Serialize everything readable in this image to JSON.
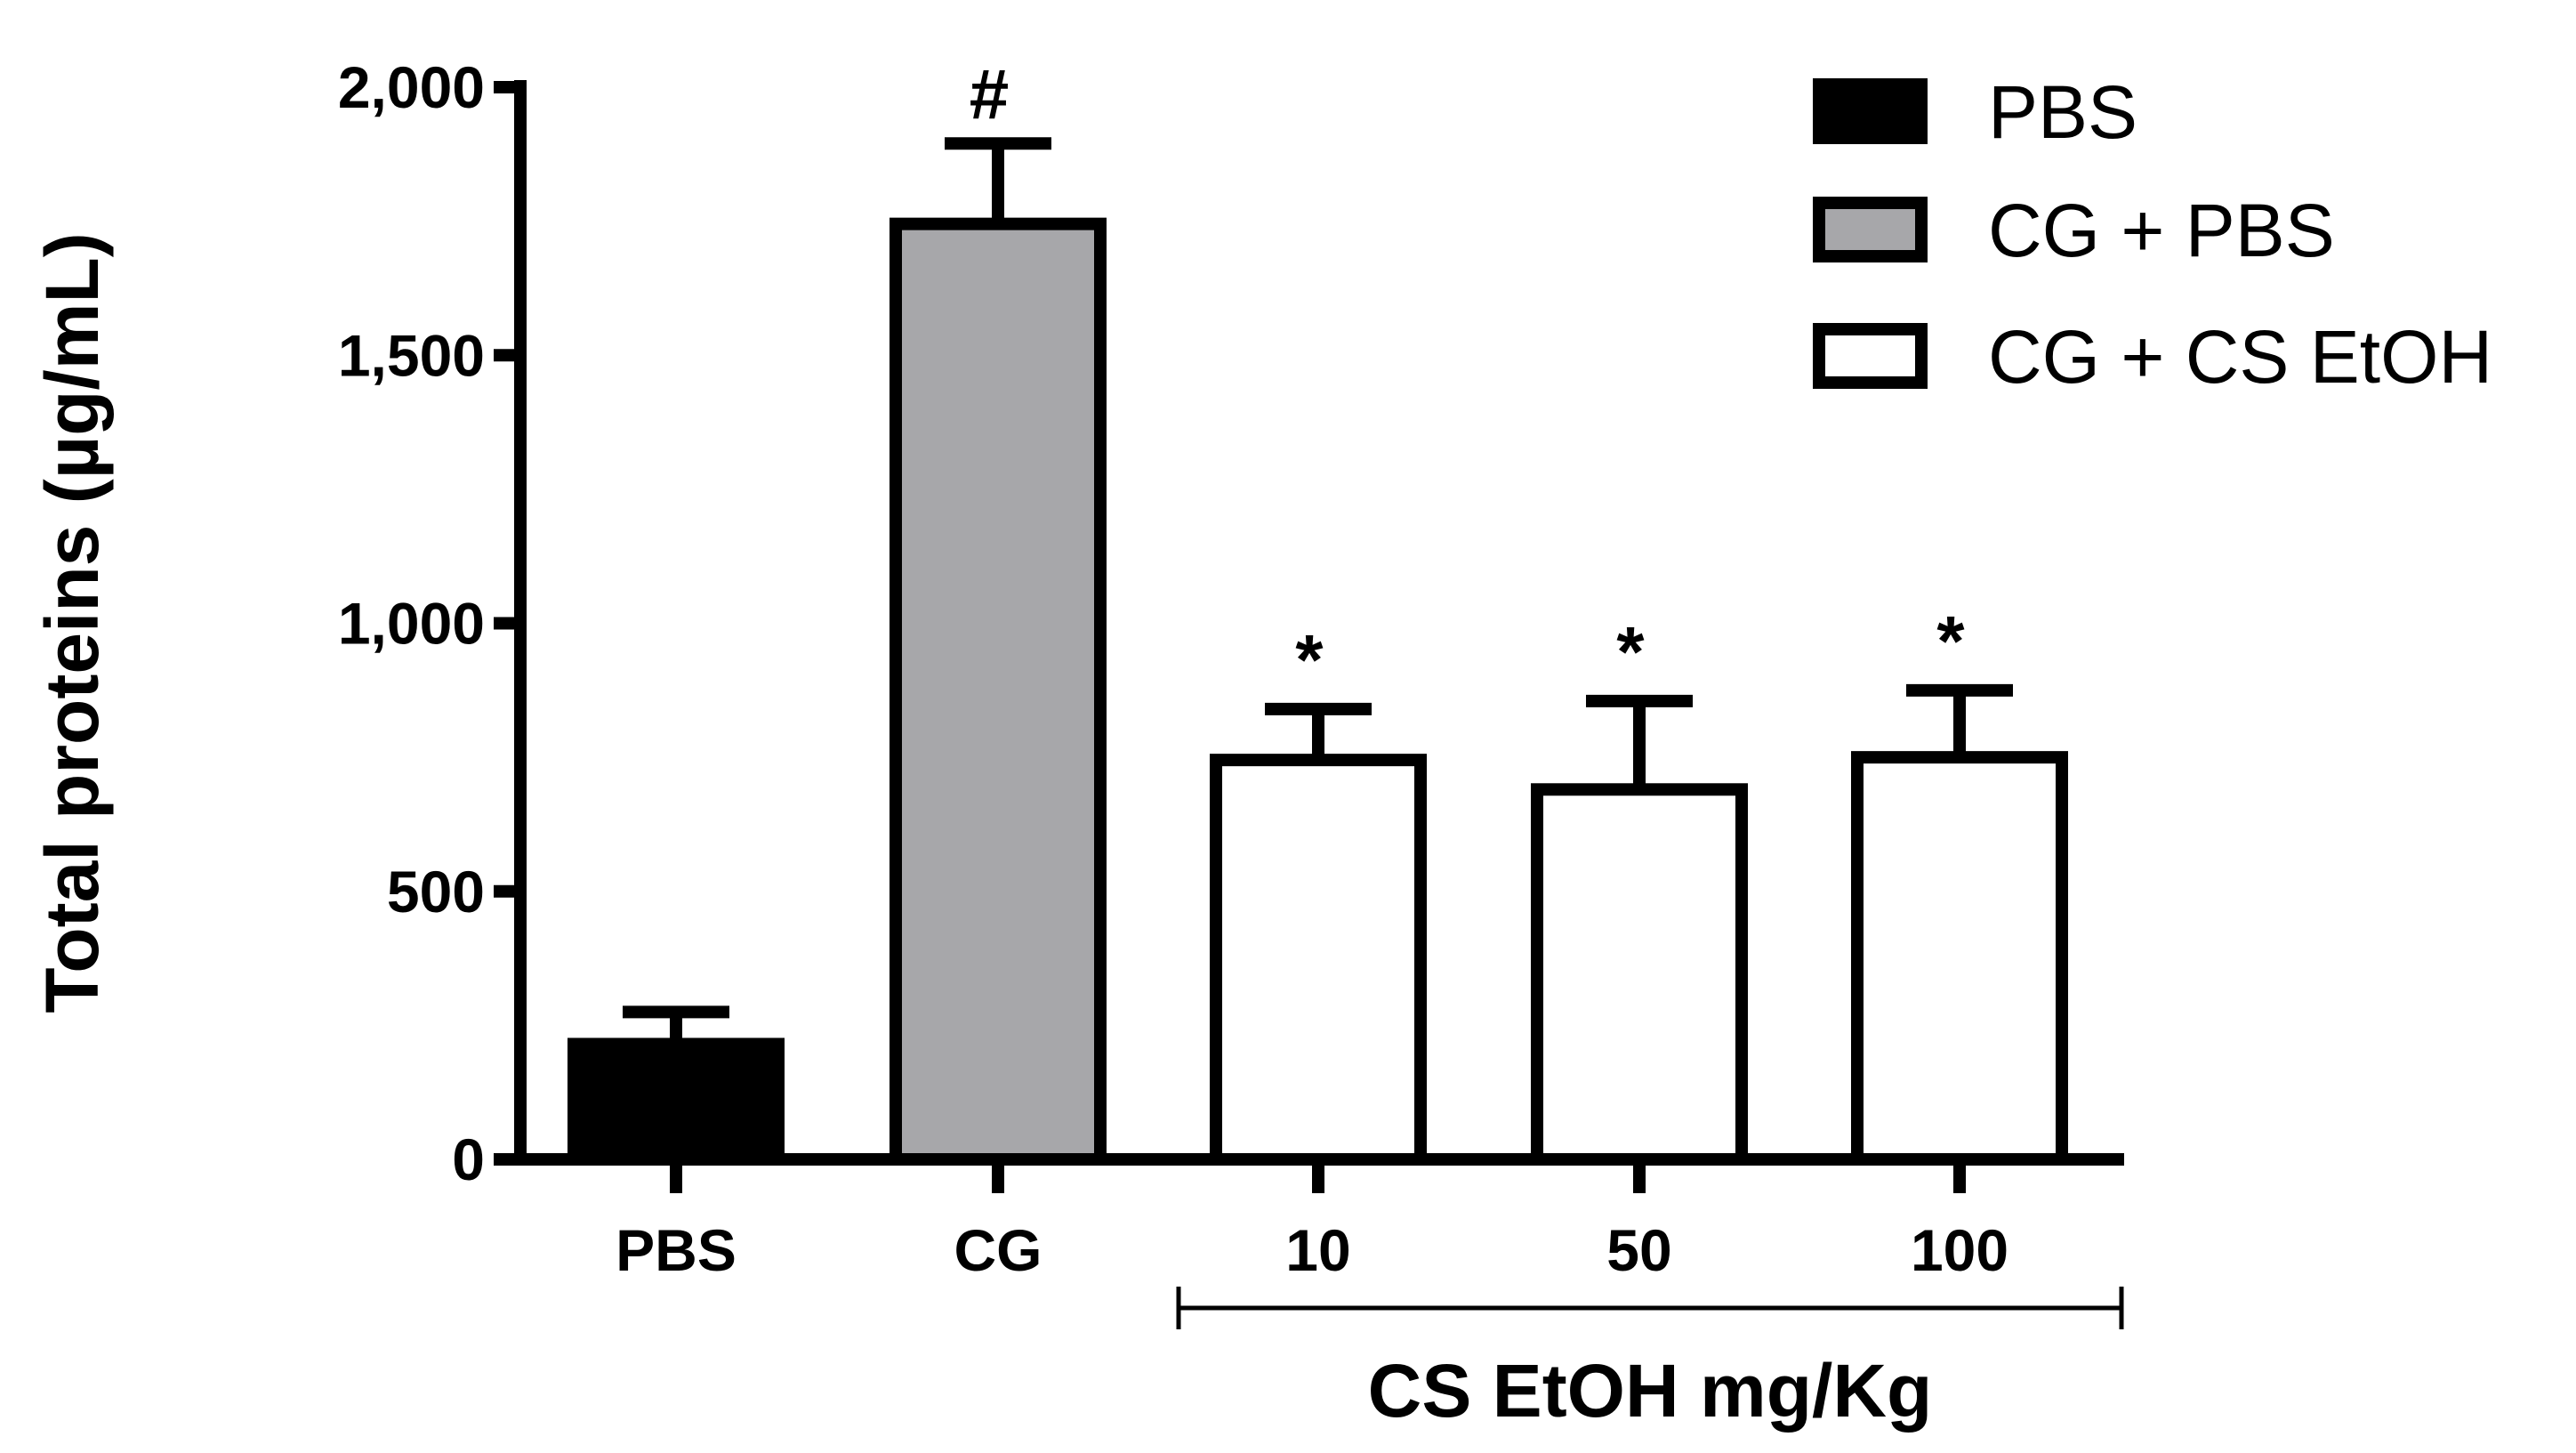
{
  "chart_data": {
    "type": "bar",
    "ylabel": "Total proteins (µg/mL)",
    "ylim": [
      0,
      2000
    ],
    "yticks": [
      0,
      500,
      1000,
      1500,
      2000
    ],
    "ytick_labels": [
      "0",
      "500",
      "1,000",
      "1,500",
      "2,000"
    ],
    "categories": [
      "PBS",
      "CG",
      "10",
      "50",
      "100"
    ],
    "values": [
      215,
      1745,
      745,
      690,
      750
    ],
    "errors": [
      60,
      150,
      95,
      165,
      125
    ],
    "bar_series": [
      "PBS",
      "CG + PBS",
      "CG + CS EtOH",
      "CG + CS EtOH",
      "CG + CS EtOH"
    ],
    "significance": [
      "",
      "#",
      "*",
      "*",
      "*"
    ],
    "group_label": "CS EtOH mg/Kg",
    "series": [
      {
        "name": "PBS",
        "fill": "#000000"
      },
      {
        "name": "CG + PBS",
        "fill": "#a7a7aa"
      },
      {
        "name": "CG + CS EtOH",
        "fill": "#ffffff"
      }
    ],
    "grid": false,
    "legend_position": "top-right"
  }
}
